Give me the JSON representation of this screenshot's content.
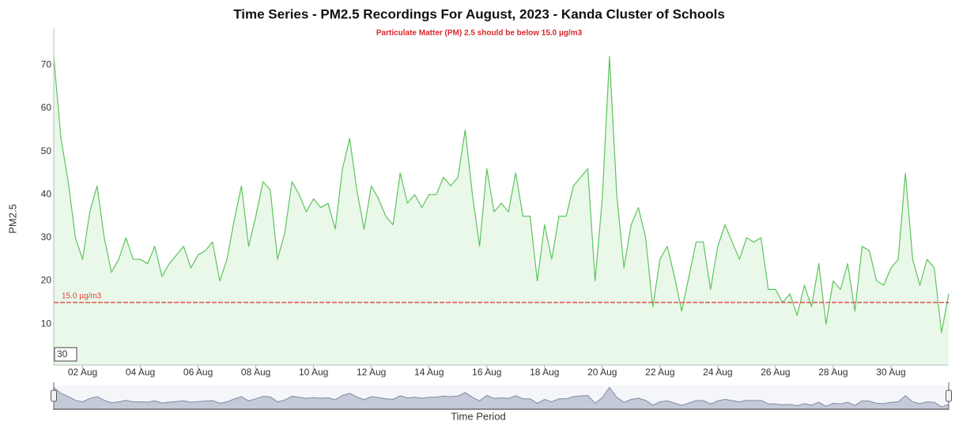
{
  "chart_data": {
    "type": "area",
    "title": "Time Series - PM2.5 Recordings For August, 2023 - Kanda Cluster of Schools",
    "subtitle": "Particulate Matter (PM) 2.5 should be below 15.0 µg/m3",
    "ylabel": "PM2.5",
    "xlabel": "Time Period",
    "range_input": "30",
    "color": "#5cc45c",
    "fill": "#eaf8ea",
    "reference_line": {
      "value": 15,
      "label": "15.0 µg/m3",
      "color": "#d9463c"
    },
    "ylim": [
      0.5,
      78.5
    ],
    "yticks": [
      10,
      20,
      30,
      40,
      50,
      60,
      70
    ],
    "xlim": [
      1,
      32
    ],
    "xticks": [
      {
        "value": 2,
        "label": "02 Aug"
      },
      {
        "value": 4,
        "label": "04 Aug"
      },
      {
        "value": 6,
        "label": "06 Aug"
      },
      {
        "value": 8,
        "label": "08 Aug"
      },
      {
        "value": 10,
        "label": "10 Aug"
      },
      {
        "value": 12,
        "label": "12 Aug"
      },
      {
        "value": 14,
        "label": "14 Aug"
      },
      {
        "value": 16,
        "label": "16 Aug"
      },
      {
        "value": 18,
        "label": "18 Aug"
      },
      {
        "value": 20,
        "label": "20 Aug"
      },
      {
        "value": 22,
        "label": "22 Aug"
      },
      {
        "value": 24,
        "label": "24 Aug"
      },
      {
        "value": 26,
        "label": "26 Aug"
      },
      {
        "value": 28,
        "label": "28 Aug"
      },
      {
        "value": 30,
        "label": "30 Aug"
      }
    ],
    "x": [
      1,
      1.25,
      1.5,
      1.75,
      2,
      2.25,
      2.5,
      2.75,
      3,
      3.25,
      3.5,
      3.75,
      4,
      4.25,
      4.5,
      4.75,
      5,
      5.25,
      5.5,
      5.75,
      6,
      6.25,
      6.5,
      6.75,
      7,
      7.25,
      7.5,
      7.75,
      8,
      8.25,
      8.5,
      8.75,
      9,
      9.25,
      9.5,
      9.75,
      10,
      10.25,
      10.5,
      10.75,
      11,
      11.25,
      11.5,
      11.75,
      12,
      12.25,
      12.5,
      12.75,
      13,
      13.25,
      13.5,
      13.75,
      14,
      14.25,
      14.5,
      14.75,
      15,
      15.25,
      15.5,
      15.75,
      16,
      16.25,
      16.5,
      16.75,
      17,
      17.25,
      17.5,
      17.75,
      18,
      18.25,
      18.5,
      18.75,
      19,
      19.25,
      19.5,
      19.75,
      20,
      20.25,
      20.5,
      20.75,
      21,
      21.25,
      21.5,
      21.75,
      22,
      22.25,
      22.5,
      22.75,
      23,
      23.25,
      23.5,
      23.75,
      24,
      24.25,
      24.5,
      24.75,
      25,
      25.25,
      25.5,
      25.75,
      26,
      26.25,
      26.5,
      26.75,
      27,
      27.25,
      27.5,
      27.75,
      28,
      28.25,
      28.5,
      28.75,
      29,
      29.25,
      29.5,
      29.75,
      30,
      30.25,
      30.5,
      30.75,
      31,
      31.25,
      31.5,
      31.75,
      32
    ],
    "values": [
      72,
      53,
      43,
      30,
      25,
      36,
      42,
      30,
      22,
      25,
      30,
      25,
      25,
      24,
      28,
      21,
      24,
      26,
      28,
      23,
      26,
      27,
      29,
      20,
      25,
      34,
      42,
      28,
      35,
      43,
      41,
      25,
      31,
      43,
      40,
      36,
      39,
      37,
      38,
      32,
      46,
      53,
      41,
      32,
      42,
      39,
      35,
      33,
      45,
      38,
      40,
      37,
      40,
      40,
      44,
      42,
      44,
      55,
      40,
      28,
      46,
      36,
      38,
      36,
      45,
      35,
      35,
      20,
      33,
      25,
      35,
      35,
      42,
      44,
      46,
      20,
      39,
      72,
      40,
      23,
      33,
      37,
      30,
      14,
      25,
      28,
      21,
      13,
      21,
      29,
      29,
      18,
      28,
      33,
      29,
      25,
      30,
      29,
      30,
      18,
      18,
      15,
      17,
      12,
      19,
      14,
      24,
      10,
      20,
      18,
      24,
      13,
      28,
      27,
      20,
      19,
      23,
      25,
      45,
      25,
      19,
      25,
      23,
      8,
      17
    ]
  }
}
